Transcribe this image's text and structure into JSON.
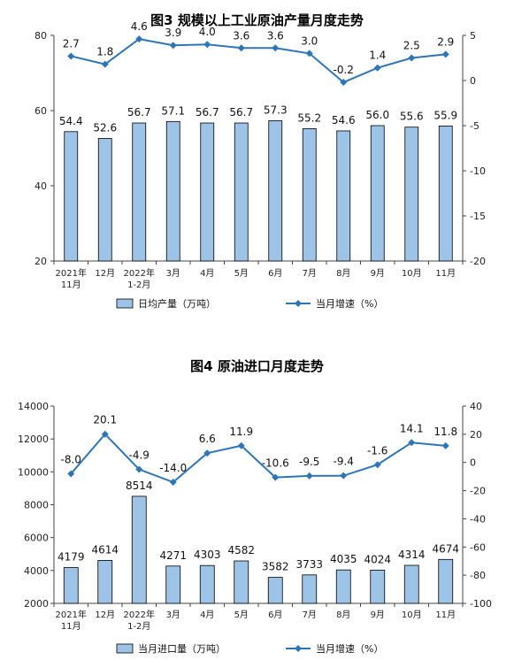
{
  "chart_data": [
    {
      "type": "bar",
      "title": "图3  规模以上工业原油产量月度走势",
      "categories": [
        [
          "2021年",
          "11月"
        ],
        [
          "12月"
        ],
        [
          "2022年",
          "1-2月"
        ],
        [
          "3月"
        ],
        [
          "4月"
        ],
        [
          "5月"
        ],
        [
          "6月"
        ],
        [
          "7月"
        ],
        [
          "8月"
        ],
        [
          "9月"
        ],
        [
          "10月"
        ],
        [
          "11月"
        ]
      ],
      "series": [
        {
          "name": "日均产量（万吨）",
          "type": "bar",
          "axis": "left",
          "values": [
            54.4,
            52.6,
            56.7,
            57.1,
            56.7,
            56.7,
            57.3,
            55.2,
            54.6,
            56.0,
            55.6,
            55.9
          ],
          "labels": [
            "54.4",
            "52.6",
            "56.7",
            "57.1",
            "56.7",
            "56.7",
            "57.3",
            "55.2",
            "54.6",
            "56.0",
            "55.6",
            "55.9"
          ]
        },
        {
          "name": "当月增速（%）",
          "type": "line",
          "axis": "right",
          "values": [
            2.7,
            1.8,
            4.6,
            3.9,
            4.0,
            3.6,
            3.6,
            3.0,
            -0.2,
            1.4,
            2.5,
            2.9
          ],
          "labels": [
            "2.7",
            "1.8",
            "4.6",
            "3.9",
            "4.0",
            "3.6",
            "3.6",
            "3.0",
            "-0.2",
            "1.4",
            "2.5",
            "2.9"
          ]
        }
      ],
      "ylim_left": [
        20,
        80
      ],
      "yticks_left": [
        20,
        40,
        60,
        80
      ],
      "ylim_right": [
        -20,
        5
      ],
      "yticks_right": [
        -20,
        -15,
        -10,
        -5,
        0,
        5
      ],
      "legend_position": "bottom",
      "grid": false,
      "colors": {
        "bar_fill": "#9DC3E6",
        "bar_stroke": "#000000",
        "line": "#2E75B6"
      }
    },
    {
      "type": "bar",
      "title": "图4  原油进口月度走势",
      "categories": [
        [
          "2021年",
          "11月"
        ],
        [
          "12月"
        ],
        [
          "2022年",
          "1-2月"
        ],
        [
          "3月"
        ],
        [
          "4月"
        ],
        [
          "5月"
        ],
        [
          "6月"
        ],
        [
          "7月"
        ],
        [
          "8月"
        ],
        [
          "9月"
        ],
        [
          "10月"
        ],
        [
          "11月"
        ]
      ],
      "series": [
        {
          "name": "当月进口量（万吨）",
          "type": "bar",
          "axis": "left",
          "values": [
            4179,
            4614,
            8514,
            4271,
            4303,
            4582,
            3582,
            3733,
            4035,
            4024,
            4314,
            4674
          ],
          "labels": [
            "4179",
            "4614",
            "8514",
            "4271",
            "4303",
            "4582",
            "3582",
            "3733",
            "4035",
            "4024",
            "4314",
            "4674"
          ]
        },
        {
          "name": "当月增速（%）",
          "type": "line",
          "axis": "right",
          "values": [
            -8.0,
            20.1,
            -4.9,
            -14.0,
            6.6,
            11.9,
            -10.6,
            -9.5,
            -9.4,
            -1.6,
            14.1,
            11.8
          ],
          "labels": [
            "-8.0",
            "20.1",
            "-4.9",
            "-14.0",
            "6.6",
            "11.9",
            "-10.6",
            "-9.5",
            "-9.4",
            "-1.6",
            "14.1",
            "11.8"
          ]
        }
      ],
      "ylim_left": [
        2000,
        14000
      ],
      "yticks_left": [
        2000,
        4000,
        6000,
        8000,
        10000,
        12000,
        14000
      ],
      "ylim_right": [
        -100,
        40
      ],
      "yticks_right": [
        -100,
        -80,
        -60,
        -40,
        -20,
        0,
        20,
        40
      ],
      "legend_position": "bottom",
      "grid": false,
      "colors": {
        "bar_fill": "#9DC3E6",
        "bar_stroke": "#000000",
        "line": "#2E75B6"
      }
    }
  ]
}
